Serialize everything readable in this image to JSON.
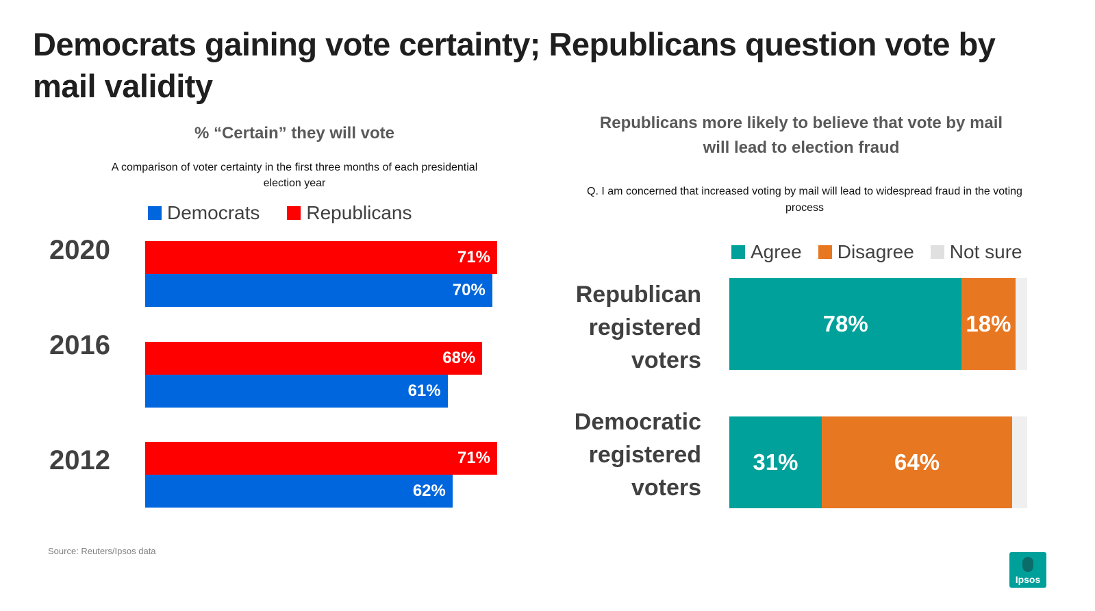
{
  "title": "Democrats gaining vote certainty; Republicans question vote by mail validity",
  "chart_data": [
    {
      "type": "bar",
      "orientation": "horizontal",
      "title": "% “Certain” they will vote",
      "subtitle": "A comparison of voter certainty in the first three months of each presidential election year",
      "categories": [
        "2020",
        "2016",
        "2012"
      ],
      "series": [
        {
          "name": "Republicans",
          "color": "#ff0000",
          "values": [
            71,
            68,
            71
          ],
          "labels": [
            "71%",
            "68%",
            "71%"
          ]
        },
        {
          "name": "Democrats",
          "color": "#0066dd",
          "values": [
            70,
            61,
            62
          ],
          "labels": [
            "70%",
            "61%",
            "62%"
          ]
        }
      ],
      "legend": [
        "Democrats",
        "Republicans"
      ],
      "xlim": [
        0,
        100
      ]
    },
    {
      "type": "bar",
      "orientation": "horizontal",
      "stacked": true,
      "title": "Republicans more likely to believe that vote by mail will lead to election fraud",
      "subtitle": "Q. I am concerned that increased voting by mail will lead to widespread fraud in the voting process",
      "categories": [
        "Republican registered voters",
        "Democratic registered voters"
      ],
      "series": [
        {
          "name": "Agree",
          "color": "#00a19a",
          "values": [
            78,
            31
          ],
          "labels": [
            "78%",
            "31%"
          ]
        },
        {
          "name": "Disagree",
          "color": "#e87722",
          "values": [
            18,
            64
          ],
          "labels": [
            "18%",
            "64%"
          ]
        },
        {
          "name": "Not sure",
          "color": "#efefef",
          "values": [
            4,
            5
          ],
          "labels": [
            "",
            ""
          ]
        }
      ],
      "xlim": [
        0,
        100
      ]
    }
  ],
  "legend_left": [
    {
      "label": "Democrats",
      "color": "#0066dd"
    },
    {
      "label": "Republicans",
      "color": "#ff0000"
    }
  ],
  "legend_right": [
    {
      "label": "Agree",
      "color": "#00a19a"
    },
    {
      "label": "Disagree",
      "color": "#e87722"
    },
    {
      "label": "Not sure",
      "color": "#e0e0e0"
    }
  ],
  "group_labels": {
    "republican": [
      "Republican",
      "registered",
      "voters"
    ],
    "democratic": [
      "Democratic",
      "registered",
      "voters"
    ]
  },
  "source": "Source: Reuters/Ipsos data",
  "logo": "Ipsos"
}
